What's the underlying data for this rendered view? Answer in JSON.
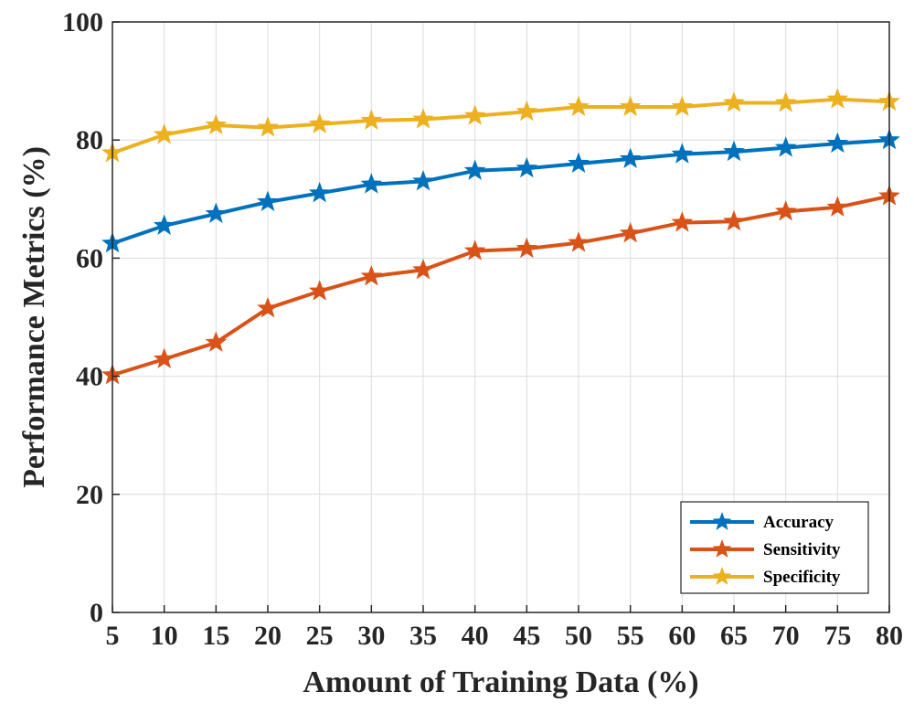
{
  "chart_data": {
    "type": "line",
    "x": [
      5,
      10,
      15,
      20,
      25,
      30,
      35,
      40,
      45,
      50,
      55,
      60,
      65,
      70,
      75,
      80
    ],
    "xticks": [
      5,
      10,
      15,
      20,
      25,
      30,
      35,
      40,
      45,
      50,
      55,
      60,
      65,
      70,
      75,
      80
    ],
    "yticks": [
      0,
      20,
      40,
      60,
      80,
      100
    ],
    "xlim": [
      5,
      80
    ],
    "ylim": [
      0,
      100
    ],
    "xlabel": "Amount of Training Data (%)",
    "ylabel": "Performance Metrics (%)",
    "title": "",
    "grid": true,
    "legend_position": "bottom-right",
    "series": [
      {
        "name": "Accuracy",
        "color": "#0072BD",
        "marker": "star",
        "values": [
          62.5,
          65.5,
          67.5,
          69.5,
          71.0,
          72.5,
          73.0,
          74.8,
          75.2,
          76.0,
          76.8,
          77.6,
          78.0,
          78.7,
          79.4,
          80.0
        ]
      },
      {
        "name": "Sensitivity",
        "color": "#D95319",
        "marker": "star",
        "values": [
          40.2,
          42.9,
          45.7,
          51.5,
          54.4,
          56.9,
          58.0,
          61.2,
          61.6,
          62.6,
          64.2,
          66.0,
          66.2,
          67.9,
          68.6,
          70.5
        ]
      },
      {
        "name": "Specificity",
        "color": "#EDB120",
        "marker": "star",
        "values": [
          77.8,
          80.9,
          82.5,
          82.1,
          82.7,
          83.3,
          83.5,
          84.1,
          84.8,
          85.6,
          85.6,
          85.6,
          86.3,
          86.3,
          86.9,
          86.5
        ]
      }
    ]
  }
}
